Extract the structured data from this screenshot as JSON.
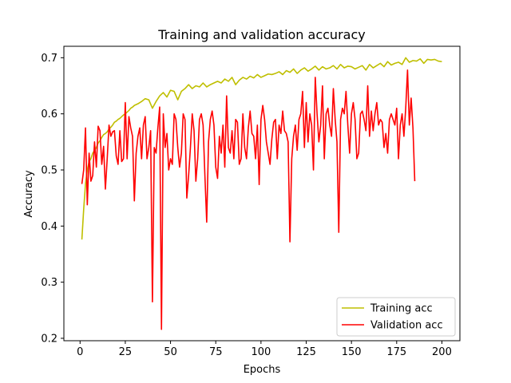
{
  "chart_data": {
    "type": "line",
    "title": "Training and validation accuracy",
    "xlabel": "Epochs",
    "ylabel": "Accuracy",
    "xlim": [
      -8.95,
      209.95
    ],
    "ylim": [
      0.1957,
      0.7204
    ],
    "xticks": [
      0,
      25,
      50,
      75,
      100,
      125,
      150,
      175,
      200
    ],
    "yticks": [
      0.2,
      0.3,
      0.4,
      0.5,
      0.6,
      0.7
    ],
    "grid": false,
    "legend": "lower-right",
    "series": [
      {
        "name": "Training acc",
        "color": "#bfbf00",
        "points": [
          [
            1,
            0.376
          ],
          [
            2,
            0.43
          ],
          [
            3,
            0.475
          ],
          [
            4,
            0.5
          ],
          [
            5,
            0.515
          ],
          [
            6,
            0.52
          ],
          [
            7,
            0.53
          ],
          [
            8,
            0.535
          ],
          [
            9,
            0.54
          ],
          [
            10,
            0.548
          ],
          [
            11,
            0.552
          ],
          [
            12,
            0.558
          ],
          [
            13,
            0.563
          ],
          [
            14,
            0.565
          ],
          [
            15,
            0.568
          ],
          [
            16,
            0.573
          ],
          [
            17,
            0.576
          ],
          [
            18,
            0.58
          ],
          [
            19,
            0.585
          ],
          [
            20,
            0.587
          ],
          [
            21,
            0.59
          ],
          [
            22,
            0.592
          ],
          [
            23,
            0.595
          ],
          [
            24,
            0.598
          ],
          [
            25,
            0.6
          ],
          [
            26,
            0.603
          ],
          [
            27,
            0.606
          ],
          [
            28,
            0.61
          ],
          [
            29,
            0.612
          ],
          [
            30,
            0.615
          ],
          [
            32,
            0.618
          ],
          [
            34,
            0.622
          ],
          [
            36,
            0.627
          ],
          [
            38,
            0.625
          ],
          [
            40,
            0.61
          ],
          [
            42,
            0.622
          ],
          [
            44,
            0.632
          ],
          [
            46,
            0.638
          ],
          [
            48,
            0.63
          ],
          [
            50,
            0.642
          ],
          [
            52,
            0.64
          ],
          [
            54,
            0.625
          ],
          [
            56,
            0.64
          ],
          [
            58,
            0.645
          ],
          [
            60,
            0.652
          ],
          [
            62,
            0.645
          ],
          [
            64,
            0.65
          ],
          [
            66,
            0.648
          ],
          [
            68,
            0.655
          ],
          [
            70,
            0.648
          ],
          [
            72,
            0.652
          ],
          [
            74,
            0.655
          ],
          [
            76,
            0.658
          ],
          [
            78,
            0.655
          ],
          [
            80,
            0.662
          ],
          [
            82,
            0.658
          ],
          [
            84,
            0.665
          ],
          [
            86,
            0.652
          ],
          [
            88,
            0.66
          ],
          [
            90,
            0.665
          ],
          [
            92,
            0.662
          ],
          [
            94,
            0.667
          ],
          [
            96,
            0.664
          ],
          [
            98,
            0.67
          ],
          [
            100,
            0.665
          ],
          [
            102,
            0.668
          ],
          [
            104,
            0.671
          ],
          [
            106,
            0.67
          ],
          [
            108,
            0.672
          ],
          [
            110,
            0.675
          ],
          [
            112,
            0.67
          ],
          [
            114,
            0.677
          ],
          [
            116,
            0.674
          ],
          [
            118,
            0.68
          ],
          [
            120,
            0.672
          ],
          [
            122,
            0.678
          ],
          [
            124,
            0.682
          ],
          [
            126,
            0.676
          ],
          [
            128,
            0.68
          ],
          [
            130,
            0.685
          ],
          [
            132,
            0.678
          ],
          [
            134,
            0.684
          ],
          [
            136,
            0.68
          ],
          [
            138,
            0.682
          ],
          [
            140,
            0.686
          ],
          [
            142,
            0.68
          ],
          [
            144,
            0.688
          ],
          [
            146,
            0.682
          ],
          [
            148,
            0.685
          ],
          [
            150,
            0.684
          ],
          [
            152,
            0.68
          ],
          [
            154,
            0.683
          ],
          [
            156,
            0.686
          ],
          [
            158,
            0.678
          ],
          [
            160,
            0.688
          ],
          [
            162,
            0.682
          ],
          [
            164,
            0.686
          ],
          [
            166,
            0.69
          ],
          [
            168,
            0.684
          ],
          [
            170,
            0.693
          ],
          [
            172,
            0.687
          ],
          [
            174,
            0.69
          ],
          [
            176,
            0.692
          ],
          [
            178,
            0.688
          ],
          [
            180,
            0.7
          ],
          [
            182,
            0.692
          ],
          [
            184,
            0.695
          ],
          [
            186,
            0.694
          ],
          [
            188,
            0.698
          ],
          [
            190,
            0.69
          ],
          [
            192,
            0.697
          ],
          [
            194,
            0.696
          ],
          [
            196,
            0.697
          ],
          [
            198,
            0.694
          ],
          [
            200,
            0.693
          ]
        ]
      },
      {
        "name": "Validation acc",
        "color": "#ff0000",
        "points": [
          [
            1,
            0.475
          ],
          [
            2,
            0.5
          ],
          [
            3,
            0.575
          ],
          [
            4,
            0.438
          ],
          [
            5,
            0.53
          ],
          [
            6,
            0.48
          ],
          [
            7,
            0.49
          ],
          [
            8,
            0.55
          ],
          [
            9,
            0.505
          ],
          [
            10,
            0.578
          ],
          [
            11,
            0.57
          ],
          [
            12,
            0.51
          ],
          [
            13,
            0.542
          ],
          [
            14,
            0.466
          ],
          [
            15,
            0.52
          ],
          [
            16,
            0.58
          ],
          [
            17,
            0.56
          ],
          [
            18,
            0.568
          ],
          [
            19,
            0.57
          ],
          [
            20,
            0.525
          ],
          [
            21,
            0.51
          ],
          [
            22,
            0.57
          ],
          [
            23,
            0.515
          ],
          [
            24,
            0.52
          ],
          [
            25,
            0.62
          ],
          [
            26,
            0.52
          ],
          [
            27,
            0.595
          ],
          [
            28,
            0.575
          ],
          [
            29,
            0.56
          ],
          [
            30,
            0.445
          ],
          [
            31,
            0.53
          ],
          [
            32,
            0.56
          ],
          [
            33,
            0.575
          ],
          [
            34,
            0.52
          ],
          [
            35,
            0.58
          ],
          [
            36,
            0.595
          ],
          [
            37,
            0.52
          ],
          [
            38,
            0.54
          ],
          [
            39,
            0.57
          ],
          [
            40,
            0.265
          ],
          [
            41,
            0.54
          ],
          [
            42,
            0.53
          ],
          [
            43,
            0.575
          ],
          [
            44,
            0.612
          ],
          [
            45,
            0.216
          ],
          [
            46,
            0.6
          ],
          [
            47,
            0.54
          ],
          [
            48,
            0.565
          ],
          [
            49,
            0.5
          ],
          [
            50,
            0.52
          ],
          [
            51,
            0.51
          ],
          [
            52,
            0.6
          ],
          [
            53,
            0.59
          ],
          [
            54,
            0.54
          ],
          [
            55,
            0.505
          ],
          [
            56,
            0.53
          ],
          [
            57,
            0.6
          ],
          [
            58,
            0.59
          ],
          [
            59,
            0.45
          ],
          [
            60,
            0.49
          ],
          [
            61,
            0.54
          ],
          [
            62,
            0.6
          ],
          [
            63,
            0.57
          ],
          [
            64,
            0.48
          ],
          [
            65,
            0.52
          ],
          [
            66,
            0.59
          ],
          [
            67,
            0.6
          ],
          [
            68,
            0.58
          ],
          [
            69,
            0.49
          ],
          [
            70,
            0.407
          ],
          [
            71,
            0.55
          ],
          [
            72,
            0.59
          ],
          [
            73,
            0.605
          ],
          [
            74,
            0.58
          ],
          [
            75,
            0.505
          ],
          [
            76,
            0.485
          ],
          [
            77,
            0.56
          ],
          [
            78,
            0.53
          ],
          [
            79,
            0.58
          ],
          [
            80,
            0.505
          ],
          [
            81,
            0.632
          ],
          [
            82,
            0.54
          ],
          [
            83,
            0.53
          ],
          [
            84,
            0.57
          ],
          [
            85,
            0.52
          ],
          [
            86,
            0.59
          ],
          [
            87,
            0.585
          ],
          [
            88,
            0.51
          ],
          [
            89,
            0.52
          ],
          [
            90,
            0.6
          ],
          [
            91,
            0.54
          ],
          [
            92,
            0.52
          ],
          [
            93,
            0.575
          ],
          [
            94,
            0.605
          ],
          [
            95,
            0.565
          ],
          [
            96,
            0.56
          ],
          [
            97,
            0.52
          ],
          [
            98,
            0.58
          ],
          [
            99,
            0.474
          ],
          [
            100,
            0.59
          ],
          [
            101,
            0.615
          ],
          [
            102,
            0.59
          ],
          [
            103,
            0.55
          ],
          [
            104,
            0.53
          ],
          [
            105,
            0.51
          ],
          [
            106,
            0.555
          ],
          [
            107,
            0.585
          ],
          [
            108,
            0.59
          ],
          [
            109,
            0.52
          ],
          [
            110,
            0.58
          ],
          [
            111,
            0.565
          ],
          [
            112,
            0.605
          ],
          [
            113,
            0.57
          ],
          [
            114,
            0.565
          ],
          [
            115,
            0.55
          ],
          [
            116,
            0.372
          ],
          [
            117,
            0.52
          ],
          [
            118,
            0.56
          ],
          [
            119,
            0.58
          ],
          [
            120,
            0.535
          ],
          [
            121,
            0.59
          ],
          [
            122,
            0.6
          ],
          [
            123,
            0.64
          ],
          [
            124,
            0.54
          ],
          [
            125,
            0.62
          ],
          [
            126,
            0.55
          ],
          [
            127,
            0.6
          ],
          [
            128,
            0.58
          ],
          [
            129,
            0.5
          ],
          [
            130,
            0.665
          ],
          [
            131,
            0.6
          ],
          [
            132,
            0.55
          ],
          [
            133,
            0.58
          ],
          [
            134,
            0.65
          ],
          [
            135,
            0.52
          ],
          [
            136,
            0.6
          ],
          [
            137,
            0.61
          ],
          [
            138,
            0.58
          ],
          [
            139,
            0.56
          ],
          [
            140,
            0.645
          ],
          [
            141,
            0.59
          ],
          [
            142,
            0.55
          ],
          [
            143,
            0.389
          ],
          [
            144,
            0.59
          ],
          [
            145,
            0.61
          ],
          [
            146,
            0.6
          ],
          [
            147,
            0.64
          ],
          [
            148,
            0.58
          ],
          [
            149,
            0.53
          ],
          [
            150,
            0.6
          ],
          [
            151,
            0.62
          ],
          [
            152,
            0.59
          ],
          [
            153,
            0.52
          ],
          [
            154,
            0.53
          ],
          [
            155,
            0.6
          ],
          [
            156,
            0.605
          ],
          [
            157,
            0.59
          ],
          [
            158,
            0.57
          ],
          [
            159,
            0.65
          ],
          [
            160,
            0.56
          ],
          [
            161,
            0.605
          ],
          [
            162,
            0.57
          ],
          [
            163,
            0.6
          ],
          [
            164,
            0.62
          ],
          [
            165,
            0.58
          ],
          [
            166,
            0.59
          ],
          [
            167,
            0.585
          ],
          [
            168,
            0.54
          ],
          [
            169,
            0.565
          ],
          [
            170,
            0.53
          ],
          [
            171,
            0.59
          ],
          [
            172,
            0.6
          ],
          [
            173,
            0.59
          ],
          [
            174,
            0.58
          ],
          [
            175,
            0.61
          ],
          [
            176,
            0.52
          ],
          [
            177,
            0.58
          ],
          [
            178,
            0.6
          ],
          [
            179,
            0.56
          ],
          [
            180,
            0.61
          ],
          [
            181,
            0.678
          ],
          [
            182,
            0.58
          ],
          [
            183,
            0.628
          ],
          [
            184,
            0.575
          ],
          [
            185,
            0.48
          ]
        ]
      }
    ]
  }
}
